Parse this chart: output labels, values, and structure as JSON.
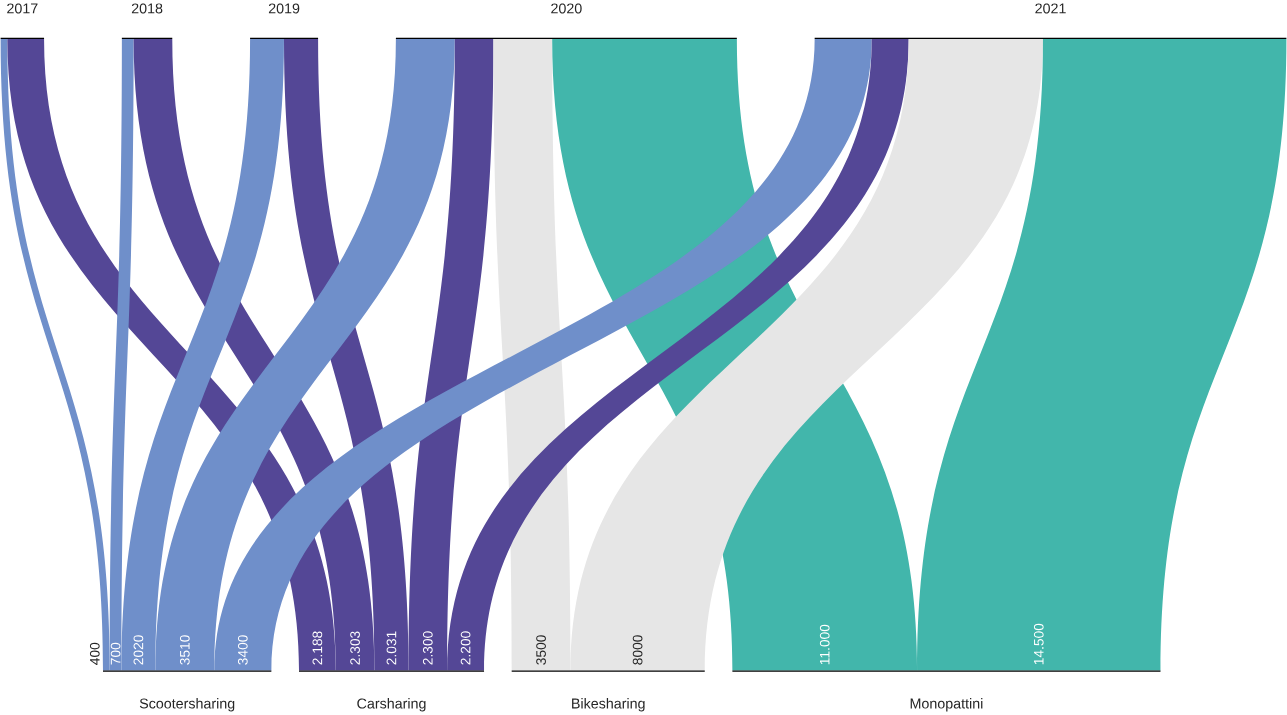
{
  "chart_data": {
    "type": "other",
    "categories": [
      "Scootersharing",
      "Carsharing",
      "Bikesharing",
      "Monopattini"
    ],
    "series": [
      {
        "name": "2017",
        "values": [
          400,
          2188,
          null,
          null
        ],
        "value_labels": [
          "400",
          "2.188",
          null,
          null
        ],
        "colors": [
          "#6f8fca",
          "#544796",
          null,
          null
        ]
      },
      {
        "name": "2018",
        "values": [
          700,
          2303,
          null,
          null
        ],
        "value_labels": [
          "700",
          "2.303",
          null,
          null
        ],
        "colors": [
          "#6f8fca",
          "#544796",
          null,
          null
        ]
      },
      {
        "name": "2019",
        "values": [
          2020,
          2031,
          null,
          null
        ],
        "value_labels": [
          "2020",
          "2.031",
          null,
          null
        ],
        "colors": [
          "#6f8fca",
          "#544796",
          null,
          null
        ]
      },
      {
        "name": "2020",
        "values": [
          3510,
          2300,
          3500,
          11000
        ],
        "value_labels": [
          "3510",
          "2.300",
          "3500",
          "11.000"
        ],
        "colors": [
          "#6f8fca",
          "#544796",
          "#e6e6e6",
          "#42b6ab"
        ]
      },
      {
        "name": "2021",
        "values": [
          3400,
          2200,
          8000,
          14500
        ],
        "value_labels": [
          "3400",
          "2.200",
          "8000",
          "14.500"
        ],
        "colors": [
          "#6f8fca",
          "#544796",
          "#e6e6e6",
          "#42b6ab"
        ]
      }
    ]
  }
}
